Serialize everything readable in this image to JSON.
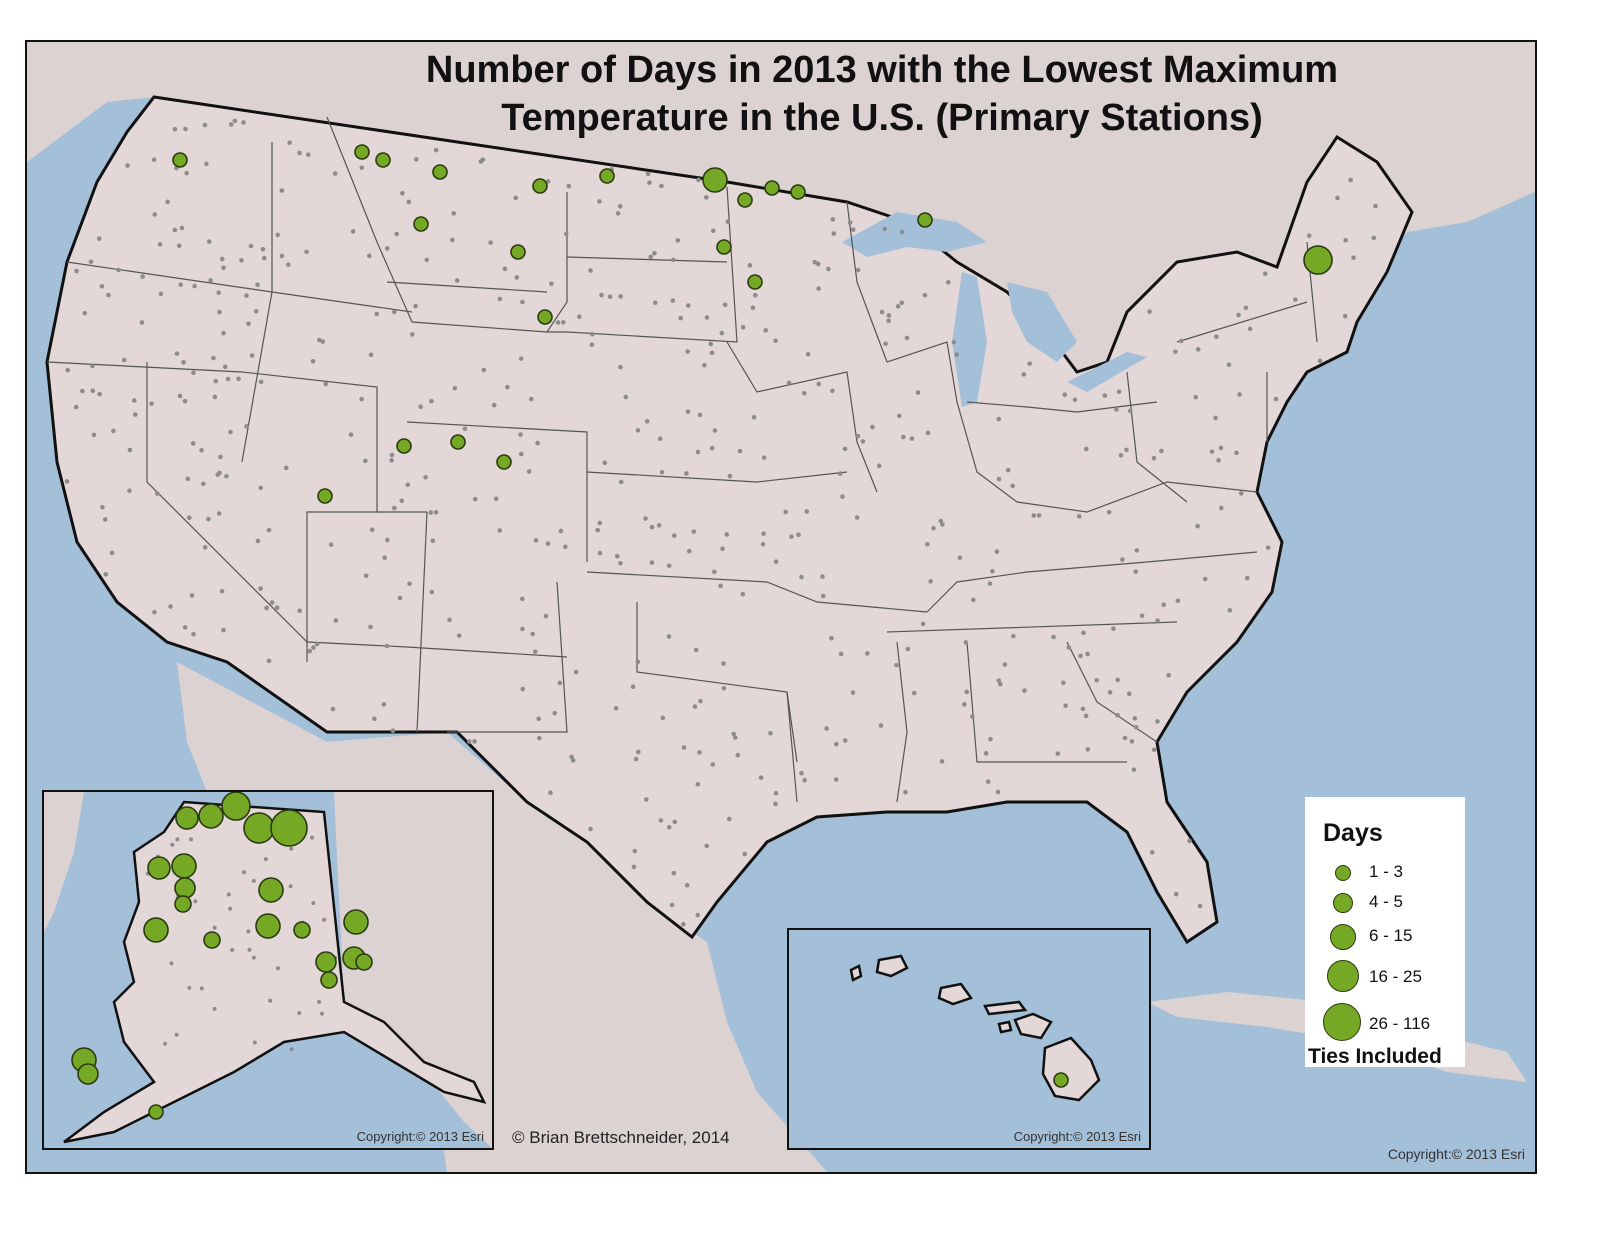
{
  "title": {
    "line1": "Number of Days in 2013 with the Lowest Maximum",
    "line2": "Temperature in the U.S. (Primary Stations)"
  },
  "author": "© Brian Brettschneider, 2014",
  "copyrights": {
    "alaska": "Copyright:© 2013 Esri",
    "hawaii": "Copyright:© 2013 Esri",
    "main": "Copyright:© 2013 Esri"
  },
  "legend": {
    "title": "Days",
    "classes": [
      "1 - 3",
      "4 - 5",
      "6 - 15",
      "16 - 25",
      "26 - 116"
    ],
    "note": "Ties Included"
  },
  "colors": {
    "water": "#a4bfd8",
    "land": "#e4d7d7",
    "symbol_fill": "#74a825",
    "symbol_outline": "#2b3a10",
    "station_dot": "#8c8c8c"
  }
}
